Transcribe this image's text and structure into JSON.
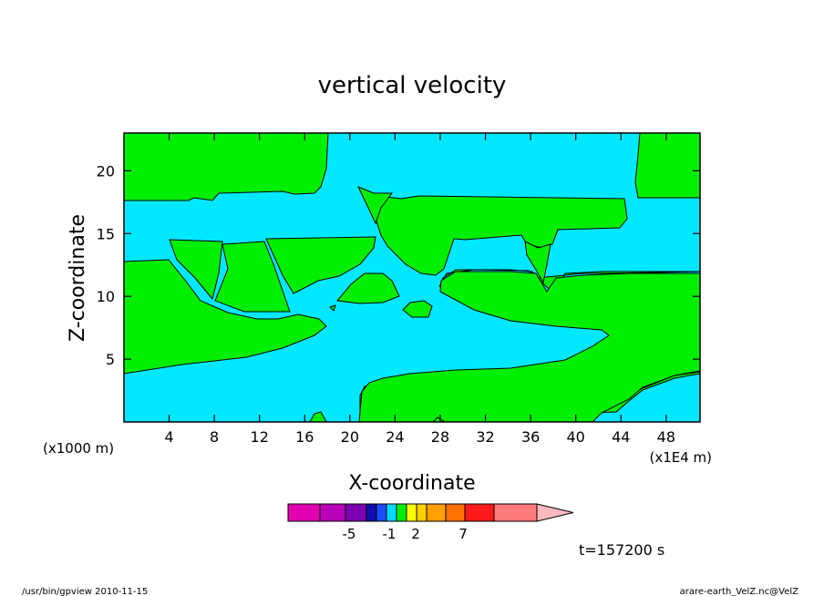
{
  "chart_data": {
    "type": "contour",
    "title": "vertical velocity",
    "xlabel": "X-coordinate",
    "ylabel": "Z-coordinate",
    "x_unit_note": "(x1E4 m)",
    "y_unit_note": "(x1000 m)",
    "xlim": [
      0,
      51
    ],
    "ylim": [
      0,
      23
    ],
    "xticks": [
      4,
      8,
      12,
      16,
      20,
      24,
      28,
      32,
      36,
      40,
      44,
      48
    ],
    "yticks": [
      5,
      10,
      15,
      20
    ],
    "grid": false,
    "field_regions": [
      {
        "level": "green",
        "meaning": "between 0 and 2",
        "color": "#00ee00"
      },
      {
        "level": "cyan",
        "meaning": "between -1 and 0",
        "color": "#00e8ff"
      }
    ],
    "colorbar": {
      "colors": [
        "#e000b0",
        "#b800b8",
        "#7a00b0",
        "#1010b0",
        "#1a4cff",
        "#00d8ff",
        "#00ee00",
        "#ffff00",
        "#ffd000",
        "#ffa000",
        "#ff7000",
        "#ff1a1a",
        "#ff7a7a",
        "#ffb8c0"
      ],
      "labels": [
        "-5",
        "-1",
        "2",
        "7"
      ]
    },
    "time_label": "t=157200 s"
  },
  "footer": {
    "left": "/usr/bin/gpview  2010-11-15",
    "right": "arare-earth_VelZ.nc@VelZ"
  }
}
